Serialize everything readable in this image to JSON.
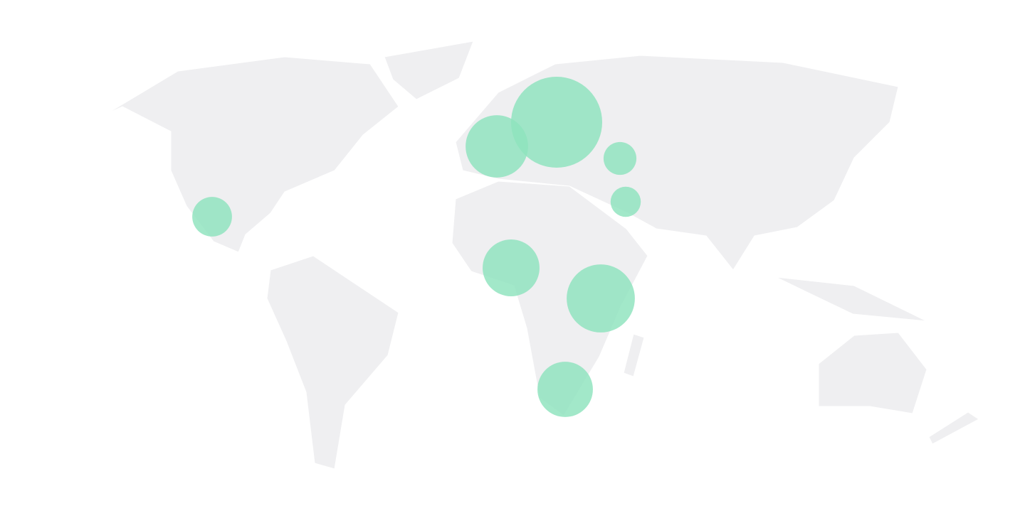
{
  "chart_data": {
    "type": "bubble-map",
    "color": "#8ee3bd",
    "values": [
      100,
      47,
      13,
      11,
      19,
      39,
      56,
      37
    ]
  }
}
